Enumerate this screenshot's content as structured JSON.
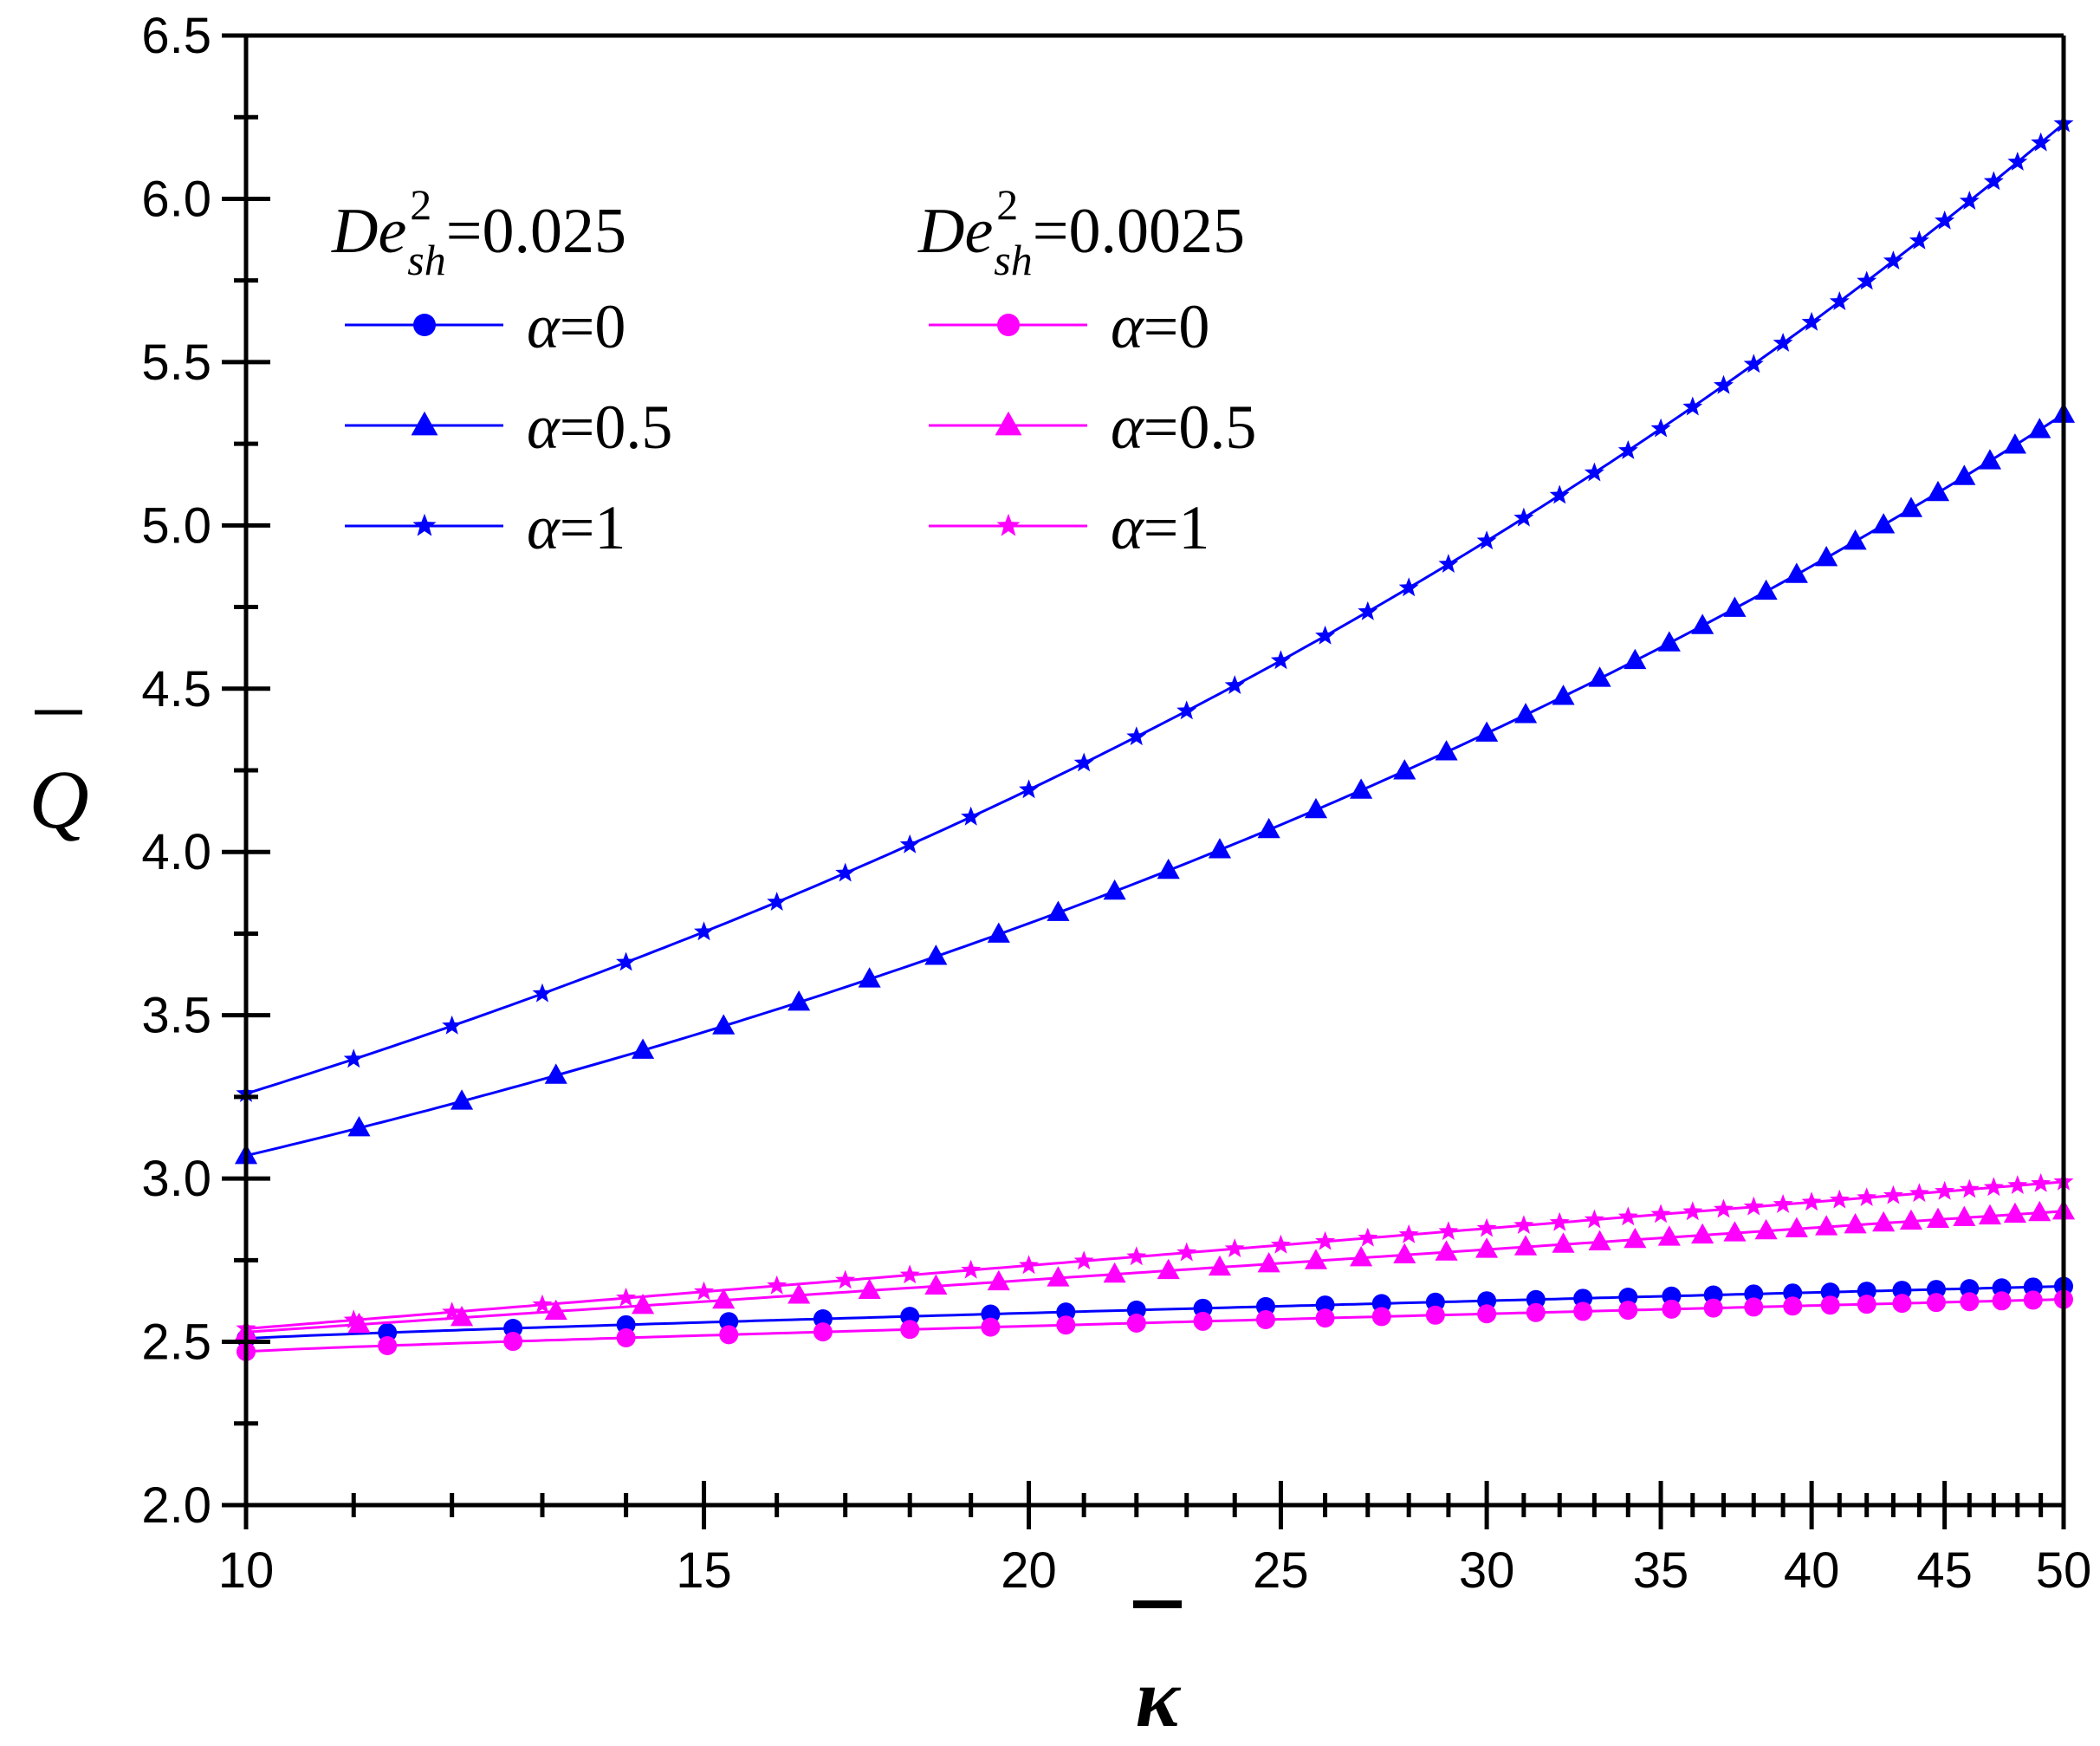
{
  "chart_data": {
    "type": "line",
    "title": "",
    "xlabel": "κ",
    "ylabel": "Q",
    "x_scale": "log",
    "xlim": [
      10,
      50
    ],
    "ylim": [
      2.0,
      6.5
    ],
    "x_tick_labels": [
      "10",
      "15",
      "20",
      "25",
      "30",
      "35",
      "40",
      "45",
      "50"
    ],
    "y_tick_labels": [
      "2.0",
      "2.5",
      "3.0",
      "3.5",
      "4.0",
      "4.5",
      "5.0",
      "5.5",
      "6.0",
      "6.5"
    ],
    "legend": {
      "placement": "top-left",
      "groups": [
        {
          "prefix": "De",
          "superscript": "2",
          "subscript": "sh",
          "value_text": "=0.025"
        },
        {
          "prefix": "De",
          "superscript": "2",
          "subscript": "sh",
          "value_text": "=0.0025"
        }
      ]
    },
    "series": [
      {
        "name": "α=0",
        "group": 0,
        "label_symbol": "α",
        "label_value": "=0",
        "marker": "circle",
        "color": "#0000ff",
        "x": [
          10,
          50
        ],
        "y": [
          2.51,
          2.67
        ],
        "curve": {
          "model": "log-power",
          "y0": 2.51,
          "y1": 2.67,
          "p": 0.85
        }
      },
      {
        "name": "α=0.5",
        "group": 0,
        "label_symbol": "α",
        "label_value": "=0.5",
        "marker": "triangle",
        "color": "#0000ff",
        "x": [
          10,
          15,
          20,
          25,
          30,
          40,
          50
        ],
        "y": [
          3.07,
          3.4,
          3.69,
          3.97,
          4.23,
          4.82,
          5.34
        ],
        "curve": {
          "model": "exp",
          "y0": 3.07,
          "y1": 5.34,
          "k": 1.0
        }
      },
      {
        "name": "α=1",
        "group": 0,
        "label_symbol": "α",
        "label_value": "=1",
        "marker": "star",
        "color": "#0000ff",
        "x": [
          10,
          15,
          20,
          25,
          30,
          40,
          50
        ],
        "y": [
          3.26,
          3.67,
          4.05,
          4.41,
          4.76,
          5.54,
          6.23
        ],
        "curve": {
          "model": "exp",
          "y0": 3.26,
          "y1": 6.23,
          "k": 1.0
        }
      },
      {
        "name": "α=0",
        "group": 1,
        "label_symbol": "α",
        "label_value": "=0",
        "marker": "circle",
        "color": "#ff00ff",
        "x": [
          10,
          50
        ],
        "y": [
          2.47,
          2.63
        ],
        "curve": {
          "model": "log-power",
          "y0": 2.47,
          "y1": 2.63,
          "p": 0.85
        }
      },
      {
        "name": "α=0.5",
        "group": 1,
        "label_symbol": "α",
        "label_value": "=0.5",
        "marker": "triangle",
        "color": "#ff00ff",
        "x": [
          10,
          20,
          30,
          40,
          50
        ],
        "y": [
          2.53,
          2.69,
          2.77,
          2.83,
          2.9
        ],
        "curve": {
          "model": "log-power",
          "y0": 2.53,
          "y1": 2.9,
          "p": 1.0
        }
      },
      {
        "name": "α=1",
        "group": 1,
        "label_symbol": "α",
        "label_value": "=1",
        "marker": "star",
        "color": "#ff00ff",
        "x": [
          10,
          20,
          30,
          40,
          50
        ],
        "y": [
          2.54,
          2.71,
          2.82,
          2.91,
          2.99
        ],
        "curve": {
          "model": "log-power",
          "y0": 2.54,
          "y1": 2.99,
          "p": 1.0
        }
      }
    ]
  }
}
